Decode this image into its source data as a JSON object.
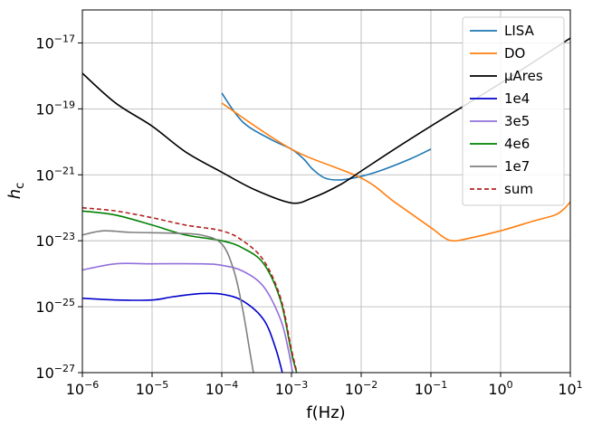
{
  "chart_data": {
    "type": "line",
    "xlabel": "f(Hz)",
    "ylabel_main": "h",
    "ylabel_sub": "c",
    "xscale": "log",
    "yscale": "log",
    "xlim": [
      1e-06,
      10
    ],
    "ylim": [
      1e-27,
      1e-16
    ],
    "grid": true,
    "legend_position": "top-right",
    "x_ticks": [
      {
        "base": "10",
        "exp": "−6",
        "value": 1e-06
      },
      {
        "base": "10",
        "exp": "−5",
        "value": 1e-05
      },
      {
        "base": "10",
        "exp": "−4",
        "value": 0.0001
      },
      {
        "base": "10",
        "exp": "−3",
        "value": 0.001
      },
      {
        "base": "10",
        "exp": "−2",
        "value": 0.01
      },
      {
        "base": "10",
        "exp": "−1",
        "value": 0.1
      },
      {
        "base": "10",
        "exp": "0",
        "value": 1
      },
      {
        "base": "10",
        "exp": "1",
        "value": 10
      }
    ],
    "y_ticks": [
      {
        "base": "10",
        "exp": "−27",
        "value": 1e-27
      },
      {
        "base": "10",
        "exp": "−25",
        "value": 1e-25
      },
      {
        "base": "10",
        "exp": "−23",
        "value": 1e-23
      },
      {
        "base": "10",
        "exp": "−21",
        "value": 1e-21
      },
      {
        "base": "10",
        "exp": "−19",
        "value": 1e-19
      },
      {
        "base": "10",
        "exp": "−17",
        "value": 1e-17
      }
    ],
    "series": [
      {
        "name": "LISA",
        "color": "#1f77b4",
        "dash": "solid",
        "points": [
          [
            0.0001,
            3e-19
          ],
          [
            0.0002,
            4e-20
          ],
          [
            0.0005,
            1.2e-20
          ],
          [
            0.001,
            6e-21
          ],
          [
            0.0015,
            3e-21
          ],
          [
            0.002,
            1.5e-21
          ],
          [
            0.003,
            8e-22
          ],
          [
            0.005,
            7e-22
          ],
          [
            0.01,
            9e-22
          ],
          [
            0.02,
            1.4e-21
          ],
          [
            0.05,
            3e-21
          ],
          [
            0.1,
            6e-21
          ]
        ]
      },
      {
        "name": "DO",
        "color": "#ff7f0e",
        "dash": "solid",
        "points": [
          [
            0.0001,
            1.5e-19
          ],
          [
            0.001,
            6e-21
          ],
          [
            0.01,
            8e-22
          ],
          [
            0.03,
            1.5e-22
          ],
          [
            0.1,
            2.5e-23
          ],
          [
            0.15,
            1.3e-23
          ],
          [
            0.2,
            1e-23
          ],
          [
            0.3,
            1.1e-23
          ],
          [
            1,
            2e-23
          ],
          [
            3,
            4e-23
          ],
          [
            6,
            6e-23
          ],
          [
            8,
            9e-23
          ],
          [
            10,
            1.5e-22
          ]
        ]
      },
      {
        "name": "μAres",
        "color": "#000000",
        "dash": "solid",
        "points": [
          [
            1e-06,
            1.2e-18
          ],
          [
            3e-06,
            1.5e-19
          ],
          [
            1e-05,
            3e-20
          ],
          [
            3e-05,
            5e-21
          ],
          [
            0.0001,
            1.2e-21
          ],
          [
            0.0003,
            3.5e-22
          ],
          [
            0.001,
            1.4e-22
          ],
          [
            0.002,
            2e-22
          ],
          [
            0.005,
            5e-22
          ],
          [
            0.01,
            1.3e-21
          ],
          [
            0.03,
            6e-21
          ],
          [
            0.1,
            3e-20
          ],
          [
            1,
            6e-19
          ],
          [
            10,
            1.4e-17
          ]
        ]
      },
      {
        "name": "1e4",
        "color": "#0000cc",
        "dash": "solid",
        "points": [
          [
            1e-06,
            1.8e-25
          ],
          [
            3e-06,
            1.6e-25
          ],
          [
            1e-05,
            1.6e-25
          ],
          [
            2e-05,
            2e-25
          ],
          [
            5e-05,
            2.5e-25
          ],
          [
            0.0001,
            2.4e-25
          ],
          [
            0.0002,
            1.5e-25
          ],
          [
            0.0004,
            4e-26
          ],
          [
            0.0006,
            5e-27
          ],
          [
            0.0008,
            5e-28
          ]
        ]
      },
      {
        "name": "3e5",
        "color": "#9370db",
        "dash": "solid",
        "points": [
          [
            1e-06,
            1.3e-24
          ],
          [
            3e-06,
            2e-24
          ],
          [
            1e-05,
            2e-24
          ],
          [
            5e-05,
            2e-24
          ],
          [
            0.0001,
            1.8e-24
          ],
          [
            0.0002,
            1.2e-24
          ],
          [
            0.0004,
            4e-25
          ],
          [
            0.0007,
            4e-26
          ],
          [
            0.0009,
            5e-27
          ],
          [
            0.0011,
            5e-28
          ]
        ]
      },
      {
        "name": "4e6",
        "color": "#008000",
        "dash": "solid",
        "points": [
          [
            1e-06,
            8e-23
          ],
          [
            3e-06,
            6e-23
          ],
          [
            1e-05,
            3e-23
          ],
          [
            3e-05,
            1.5e-23
          ],
          [
            0.0001,
            1e-23
          ],
          [
            0.0002,
            6e-24
          ],
          [
            0.0004,
            2e-24
          ],
          [
            0.0007,
            1.5e-25
          ],
          [
            0.001,
            4e-27
          ],
          [
            0.0013,
            5e-28
          ]
        ]
      },
      {
        "name": "1e7",
        "color": "#7f7f7f",
        "dash": "solid",
        "points": [
          [
            1e-06,
            1.5e-23
          ],
          [
            2e-06,
            2e-23
          ],
          [
            5e-06,
            1.8e-23
          ],
          [
            2e-05,
            1.7e-23
          ],
          [
            5e-05,
            1.5e-23
          ],
          [
            0.0001,
            8e-24
          ],
          [
            0.00015,
            1.2e-24
          ],
          [
            0.0002,
            8e-26
          ],
          [
            0.00025,
            5e-27
          ],
          [
            0.0003,
            5e-28
          ]
        ]
      },
      {
        "name": "sum",
        "color": "#b22222",
        "dash": "dashed",
        "points": [
          [
            1e-06,
            1e-22
          ],
          [
            3e-06,
            8e-23
          ],
          [
            1e-05,
            5e-23
          ],
          [
            3e-05,
            3e-23
          ],
          [
            0.0001,
            2e-23
          ],
          [
            0.0002,
            1e-23
          ],
          [
            0.0004,
            2.5e-24
          ],
          [
            0.0007,
            1.8e-25
          ],
          [
            0.001,
            5e-27
          ],
          [
            0.0013,
            5e-28
          ]
        ]
      }
    ]
  }
}
